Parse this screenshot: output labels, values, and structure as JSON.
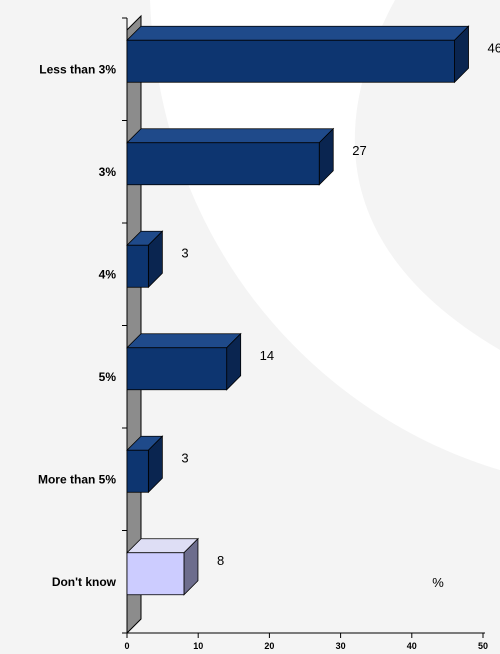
{
  "chart_data": {
    "type": "bar",
    "orientation": "horizontal",
    "three_d": true,
    "categories": [
      "Less than 3%",
      "3%",
      "4%",
      "5%",
      "More than 5%",
      "Don't know"
    ],
    "values": [
      46,
      27,
      3,
      14,
      3,
      8
    ],
    "value_labels": [
      "46",
      "27",
      "3",
      "14",
      "3",
      "8"
    ],
    "xlim": [
      0,
      50
    ],
    "xticks": [
      0,
      10,
      20,
      30,
      40,
      50
    ],
    "xtick_labels": [
      "0",
      "10",
      "20",
      "30",
      "40",
      "50"
    ],
    "unit_label": "%",
    "grid": false,
    "colors": {
      "bar_front": "#0d3570",
      "bar_top": "#1f4a8a",
      "bar_side": "#0a2550",
      "highlight_front": "#ccccff",
      "highlight_top": "#dedef5",
      "highlight_side": "#6d6d8d",
      "wall": "#8c8c8c",
      "background": "#f4f4f4",
      "swoosh": "#ffffff"
    },
    "highlight_categories": [
      "Don't know"
    ]
  }
}
